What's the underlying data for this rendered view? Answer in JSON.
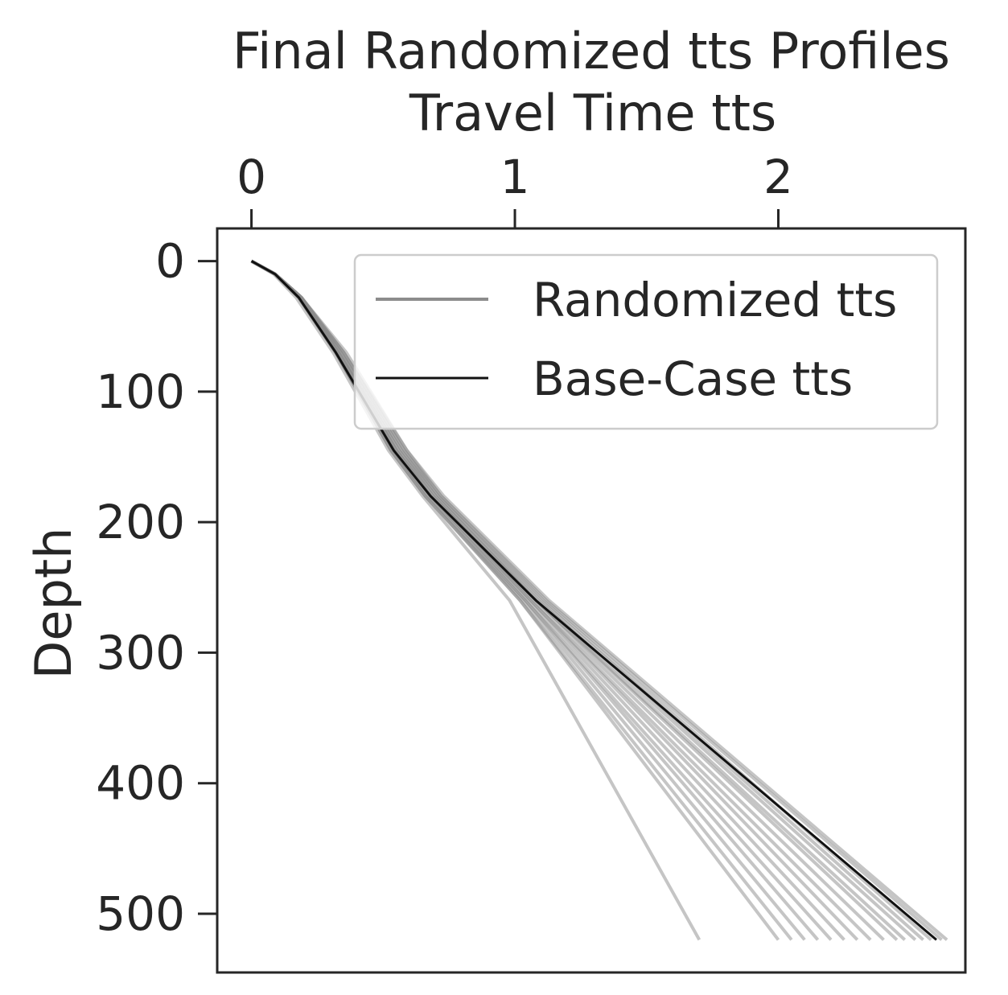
{
  "chart_data": {
    "type": "line",
    "title": "Final Randomized tts Profiles",
    "xlabel": "Travel Time tts",
    "ylabel": "Depth",
    "xlim": [
      -0.13,
      2.71
    ],
    "ylim": [
      -25,
      545
    ],
    "y_inverted": true,
    "x_axis_position": "top",
    "grid": false,
    "legend_position": "top-right",
    "x_ticks": [
      "0",
      "1",
      "2"
    ],
    "y_ticks": [
      "0",
      "100",
      "200",
      "300",
      "400",
      "500"
    ],
    "depth": [
      0,
      10,
      28,
      70,
      145,
      180,
      260,
      520
    ],
    "series": [
      {
        "name": "Base-Case tts",
        "color": "#111111",
        "x": [
          0,
          0.09,
          0.18,
          0.32,
          0.54,
          0.68,
          1.08,
          2.6
        ]
      }
    ],
    "randomized": {
      "name": "Randomized tts",
      "color": "#8c8c8c",
      "x": [
        [
          0,
          0.085,
          0.17,
          0.31,
          0.52,
          0.65,
          0.98,
          1.7
        ],
        [
          0,
          0.09,
          0.18,
          0.32,
          0.53,
          0.66,
          1.02,
          2.0
        ],
        [
          0,
          0.09,
          0.18,
          0.32,
          0.53,
          0.66,
          1.02,
          2.05
        ],
        [
          0,
          0.09,
          0.18,
          0.32,
          0.53,
          0.66,
          1.03,
          2.1
        ],
        [
          0,
          0.09,
          0.18,
          0.32,
          0.54,
          0.67,
          1.04,
          2.15
        ],
        [
          0,
          0.09,
          0.18,
          0.32,
          0.54,
          0.67,
          1.04,
          2.2
        ],
        [
          0,
          0.09,
          0.18,
          0.33,
          0.55,
          0.68,
          1.05,
          2.25
        ],
        [
          0,
          0.09,
          0.18,
          0.33,
          0.55,
          0.68,
          1.06,
          2.3
        ],
        [
          0,
          0.09,
          0.19,
          0.33,
          0.55,
          0.69,
          1.06,
          2.35
        ],
        [
          0,
          0.09,
          0.19,
          0.33,
          0.56,
          0.69,
          1.07,
          2.4
        ],
        [
          0,
          0.09,
          0.19,
          0.34,
          0.56,
          0.7,
          1.08,
          2.45
        ],
        [
          0,
          0.09,
          0.19,
          0.34,
          0.57,
          0.7,
          1.08,
          2.48
        ],
        [
          0,
          0.09,
          0.19,
          0.34,
          0.57,
          0.71,
          1.09,
          2.52
        ],
        [
          0,
          0.09,
          0.19,
          0.35,
          0.58,
          0.71,
          1.1,
          2.55
        ],
        [
          0,
          0.09,
          0.19,
          0.35,
          0.58,
          0.72,
          1.11,
          2.58
        ],
        [
          0,
          0.09,
          0.19,
          0.35,
          0.59,
          0.72,
          1.12,
          2.62
        ],
        [
          0,
          0.09,
          0.19,
          0.36,
          0.59,
          0.73,
          1.13,
          2.64
        ]
      ]
    }
  }
}
